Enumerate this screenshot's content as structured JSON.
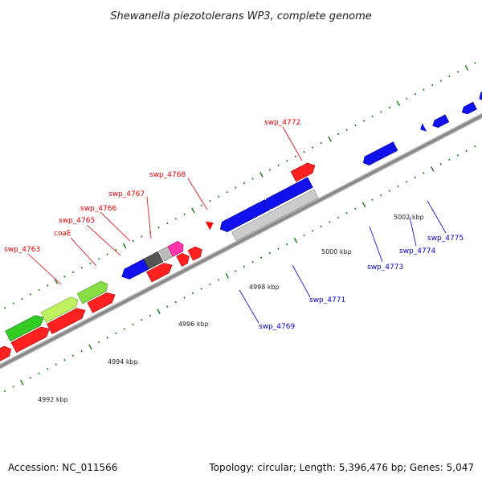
{
  "title": "Shewanella piezotolerans WP3, complete genome",
  "footer": {
    "accession": "Accession: NC_011566",
    "topology": "Topology: circular; Length: 5,396,476 bp; Genes: 5,047"
  },
  "scale": [
    "4992 kbp",
    "4994 kbp",
    "4996 kbp",
    "4998 kbp",
    "5000 kbp",
    "5002 kbp"
  ],
  "forward_labels": [
    "swp_4763",
    "coaE",
    "swp_4765",
    "swp_4766",
    "swp_4767",
    "swp_4768",
    "swp_4772"
  ],
  "reverse_labels": [
    "swp_4769",
    "swp_4771",
    "swp_4773",
    "swp_4774",
    "swp_4775"
  ],
  "colors": {
    "forward_gene": "#ff0000",
    "reverse_gene": "#0000ee",
    "rna_gene": "#44dd22",
    "backbone": "#888888",
    "tick": "#117711",
    "label_forward": "#e00000",
    "label_reverse": "#0000cc"
  }
}
